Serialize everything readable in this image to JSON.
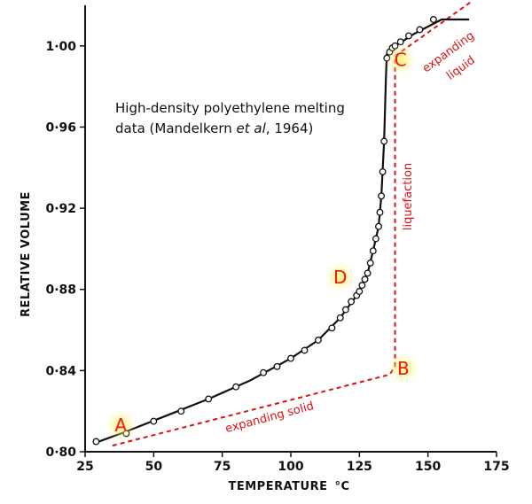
{
  "chart_data": {
    "type": "scatter",
    "xlabel": "TEMPERATURE",
    "xlabel_unit": "°C",
    "ylabel": "RELATIVE VOLUME",
    "xlim": [
      25,
      175
    ],
    "ylim": [
      0.8,
      1.02
    ],
    "x_ticks": [
      "25",
      "50",
      "75",
      "100",
      "125",
      "150",
      "175"
    ],
    "y_ticks": [
      "0·80",
      "0·84",
      "0·88",
      "0·92",
      "0·96",
      "1·00"
    ],
    "annotation_title": [
      "High-density polyethylene melting",
      "data (Mandelkern ",
      "et al",
      ", 1964)"
    ],
    "series": [
      {
        "points": [
          [
            29,
            0.805
          ],
          [
            40,
            0.809
          ],
          [
            50,
            0.815
          ],
          [
            60,
            0.82
          ],
          [
            70,
            0.826
          ],
          [
            80,
            0.832
          ],
          [
            90,
            0.839
          ],
          [
            95,
            0.842
          ],
          [
            100,
            0.846
          ],
          [
            105,
            0.85
          ],
          [
            110,
            0.855
          ],
          [
            115,
            0.861
          ],
          [
            118,
            0.866
          ],
          [
            120,
            0.87
          ],
          [
            122,
            0.874
          ],
          [
            124,
            0.877
          ],
          [
            125,
            0.879
          ],
          [
            126,
            0.882
          ],
          [
            127,
            0.885
          ],
          [
            128,
            0.888
          ],
          [
            129,
            0.893
          ],
          [
            130,
            0.899
          ],
          [
            131,
            0.905
          ],
          [
            132,
            0.911
          ],
          [
            132.5,
            0.918
          ],
          [
            133,
            0.926
          ],
          [
            133.5,
            0.938
          ],
          [
            134,
            0.953
          ],
          [
            135,
            0.994
          ],
          [
            136,
            0.997
          ],
          [
            137,
            0.999
          ],
          [
            138,
            1.0
          ],
          [
            140,
            1.002
          ],
          [
            143,
            1.005
          ],
          [
            147,
            1.008
          ],
          [
            152,
            1.013
          ]
        ],
        "curve": [
          [
            28,
            0.804
          ],
          [
            40,
            0.81
          ],
          [
            55,
            0.818
          ],
          [
            70,
            0.826
          ],
          [
            85,
            0.835
          ],
          [
            100,
            0.846
          ],
          [
            110,
            0.855
          ],
          [
            118,
            0.866
          ],
          [
            124,
            0.877
          ],
          [
            128,
            0.888
          ],
          [
            130,
            0.899
          ],
          [
            132,
            0.911
          ],
          [
            133,
            0.926
          ],
          [
            134,
            0.953
          ],
          [
            134.7,
            0.985
          ],
          [
            135,
            0.996
          ],
          [
            137,
            0.999
          ],
          [
            145,
            1.006
          ],
          [
            155,
            1.015
          ],
          [
            165,
            1.022
          ]
        ]
      }
    ],
    "dashed_lines": [
      {
        "name": "expanding solid",
        "points": [
          [
            35,
            0.803
          ],
          [
            136,
            0.838
          ],
          [
            138,
            0.842
          ]
        ]
      },
      {
        "name": "liquefaction",
        "points": [
          [
            138,
            0.842
          ],
          [
            138,
            0.995
          ]
        ]
      },
      {
        "name": "expanding liquid",
        "points": [
          [
            138,
            0.995
          ],
          [
            166,
            1.022
          ]
        ]
      }
    ],
    "annotations": {
      "expanding_solid": "expanding solid",
      "liquefaction": "liquefaction",
      "expanding": "expanding",
      "liquid": "liquid"
    },
    "point_labels": [
      {
        "label": "A",
        "x": 38,
        "y": 0.81
      },
      {
        "label": "B",
        "x": 141,
        "y": 0.838
      },
      {
        "label": "C",
        "x": 140,
        "y": 0.99
      },
      {
        "label": "D",
        "x": 118,
        "y": 0.883
      }
    ],
    "colors": {
      "curve": "#111111",
      "dashed": "#dd1111",
      "label_text": "#e81a1a",
      "label_glow": "#fff27a"
    }
  }
}
